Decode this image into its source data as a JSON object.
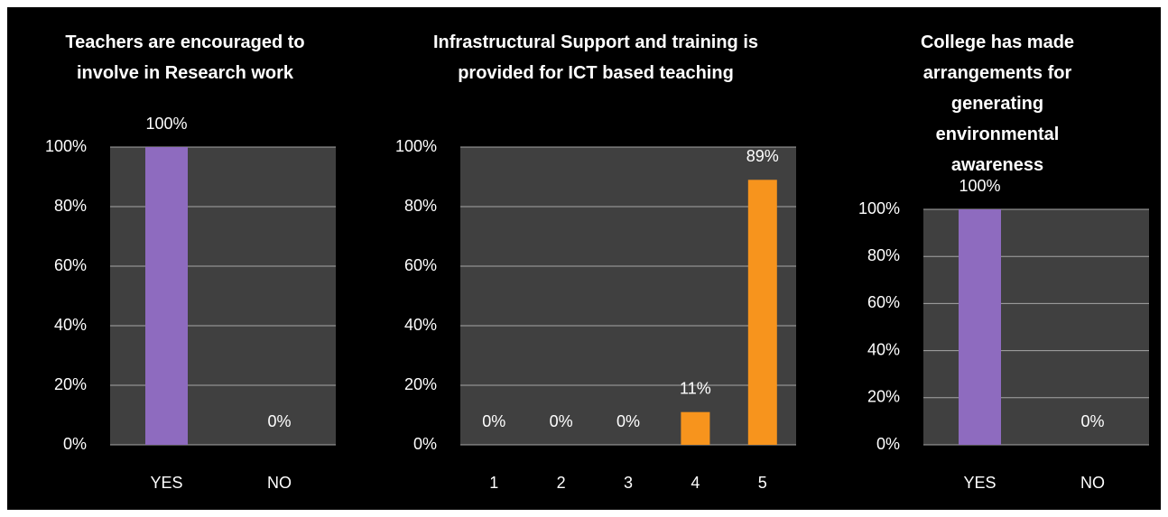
{
  "chart_data": [
    {
      "type": "bar",
      "title": "Teachers are encouraged to involve in Research work",
      "categories": [
        "YES",
        "NO"
      ],
      "values": [
        100,
        0
      ],
      "value_labels": [
        "100%",
        "0%"
      ],
      "color": "#8e6bbf",
      "ylim": [
        0,
        100
      ],
      "yticks": [
        {
          "value": 0,
          "label": "0%"
        },
        {
          "value": 20,
          "label": "20%"
        },
        {
          "value": 40,
          "label": "40%"
        },
        {
          "value": 60,
          "label": "60%"
        },
        {
          "value": 80,
          "label": "80%"
        },
        {
          "value": 100,
          "label": "100%"
        }
      ],
      "grid": true
    },
    {
      "type": "bar",
      "title": "Infrastructural Support and training is provided for ICT based teaching",
      "categories": [
        "1",
        "2",
        "3",
        "4",
        "5"
      ],
      "values": [
        0,
        0,
        0,
        11,
        89
      ],
      "value_labels": [
        "0%",
        "0%",
        "0%",
        "11%",
        "89%"
      ],
      "color": "#f7941d",
      "ylim": [
        0,
        100
      ],
      "yticks": [
        {
          "value": 0,
          "label": "0%"
        },
        {
          "value": 20,
          "label": "20%"
        },
        {
          "value": 40,
          "label": "40%"
        },
        {
          "value": 60,
          "label": "60%"
        },
        {
          "value": 80,
          "label": "80%"
        },
        {
          "value": 100,
          "label": "100%"
        }
      ],
      "grid": true
    },
    {
      "type": "bar",
      "title": "College has made arrangements for generating environmental awareness",
      "categories": [
        "YES",
        "NO"
      ],
      "values": [
        100,
        0
      ],
      "value_labels": [
        "100%",
        "0%"
      ],
      "color": "#8e6bbf",
      "ylim": [
        0,
        100
      ],
      "yticks": [
        {
          "value": 0,
          "label": "0%"
        },
        {
          "value": 20,
          "label": "20%"
        },
        {
          "value": 40,
          "label": "40%"
        },
        {
          "value": 60,
          "label": "60%"
        },
        {
          "value": 80,
          "label": "80%"
        },
        {
          "value": 100,
          "label": "100%"
        }
      ],
      "grid": true
    }
  ]
}
